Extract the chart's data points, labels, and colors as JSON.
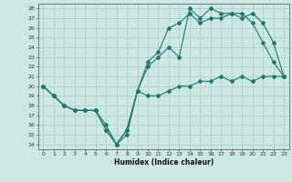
{
  "xlabel": "Humidex (Indice chaleur)",
  "bg_color": "#cde8e4",
  "grid_color": "#aaccca",
  "line_color": "#1a7a6e",
  "xlim": [
    -0.5,
    23.5
  ],
  "ylim": [
    13.5,
    28.5
  ],
  "xticks": [
    0,
    1,
    2,
    3,
    4,
    5,
    6,
    7,
    8,
    9,
    10,
    11,
    12,
    13,
    14,
    15,
    16,
    17,
    18,
    19,
    20,
    21,
    22,
    23
  ],
  "yticks": [
    14,
    15,
    16,
    17,
    18,
    19,
    20,
    21,
    22,
    23,
    24,
    25,
    26,
    27,
    28
  ],
  "line1_x": [
    0,
    1,
    2,
    3,
    4,
    5,
    6,
    7,
    8,
    9,
    10,
    11,
    12,
    13,
    14,
    15,
    16,
    17,
    18,
    19,
    20,
    21,
    22,
    23
  ],
  "line1_y": [
    20.0,
    19.0,
    18.0,
    17.5,
    17.5,
    17.5,
    16.0,
    14.0,
    15.0,
    19.5,
    19.0,
    19.0,
    19.5,
    20.0,
    20.0,
    20.5,
    20.5,
    21.0,
    20.5,
    21.0,
    20.5,
    21.0,
    21.0,
    21.0
  ],
  "line2_x": [
    0,
    1,
    2,
    3,
    4,
    5,
    6,
    7,
    8,
    9,
    10,
    11,
    12,
    13,
    14,
    15,
    16,
    17,
    18,
    19,
    20,
    21,
    22,
    23
  ],
  "line2_y": [
    20.0,
    19.0,
    18.0,
    17.5,
    17.5,
    17.5,
    15.5,
    14.0,
    15.5,
    19.5,
    22.0,
    23.0,
    24.0,
    23.0,
    28.0,
    27.0,
    28.0,
    27.5,
    27.5,
    27.5,
    26.5,
    24.5,
    22.5,
    21.0
  ],
  "line3_x": [
    0,
    1,
    2,
    3,
    4,
    5,
    6,
    7,
    8,
    9,
    10,
    11,
    12,
    13,
    14,
    15,
    16,
    17,
    18,
    19,
    20,
    21,
    22,
    23
  ],
  "line3_y": [
    20.0,
    19.0,
    18.0,
    17.5,
    17.5,
    17.5,
    15.5,
    14.0,
    15.5,
    19.5,
    22.5,
    23.5,
    26.0,
    26.5,
    27.5,
    26.5,
    27.0,
    27.0,
    27.5,
    27.0,
    27.5,
    26.5,
    24.5,
    21.0
  ]
}
